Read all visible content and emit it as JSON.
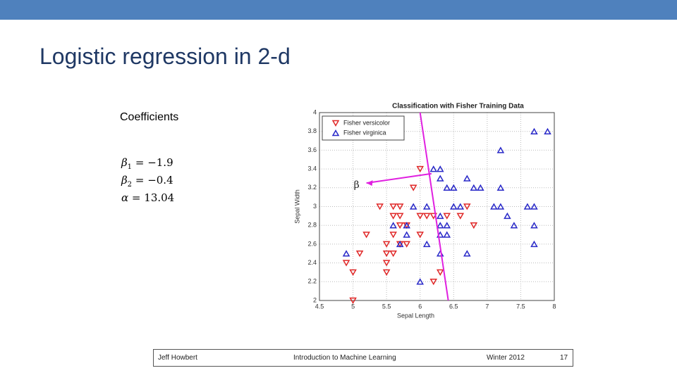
{
  "title": "Logistic regression in 2-d",
  "coefficients": {
    "label": "Coefficients",
    "items": [
      {
        "symbol": "β",
        "sub": "1",
        "relation": "=",
        "value": "−1.9"
      },
      {
        "symbol": "β",
        "sub": "2",
        "relation": "=",
        "value": "−0.4"
      },
      {
        "symbol": "α",
        "sub": "",
        "relation": "=",
        "value": "13.04"
      }
    ]
  },
  "chart_data": {
    "type": "scatter",
    "title": "Classification with Fisher Training Data",
    "xlabel": "Sepal Length",
    "ylabel": "Sepal Width",
    "xlim": [
      4.5,
      8
    ],
    "xticks": [
      4.5,
      5,
      5.5,
      6,
      6.5,
      7,
      7.5,
      8
    ],
    "ylim": [
      2,
      4
    ],
    "yticks": [
      2,
      2.2,
      2.4,
      2.6,
      2.8,
      3,
      3.2,
      3.4,
      3.6,
      3.8,
      4
    ],
    "grid": true,
    "legend": "upper left",
    "series": [
      {
        "name": "Fisher versicolor",
        "color": "#e02828",
        "marker": "triangle-down",
        "x": [
          6.0,
          5.9,
          5.4,
          5.6,
          5.7,
          6.0,
          6.1,
          6.2,
          6.4,
          6.6,
          5.6,
          5.7,
          5.8,
          5.7,
          5.6,
          6.0,
          5.2,
          5.5,
          5.7,
          5.8,
          5.5,
          5.6,
          5.1,
          4.9,
          5.5,
          5.0,
          5.5,
          6.3,
          6.2,
          5.0,
          6.8,
          6.7
        ],
        "values": [
          3.4,
          3.2,
          3.0,
          3.0,
          3.0,
          2.9,
          2.9,
          2.9,
          2.9,
          2.9,
          2.9,
          2.9,
          2.8,
          2.8,
          2.7,
          2.7,
          2.7,
          2.6,
          2.6,
          2.6,
          2.5,
          2.5,
          2.5,
          2.4,
          2.4,
          2.3,
          2.3,
          2.3,
          2.2,
          2.0,
          2.8,
          3.0
        ]
      },
      {
        "name": "Fisher virginica",
        "color": "#2828c8",
        "marker": "triangle-up",
        "x": [
          7.7,
          7.9,
          7.2,
          6.2,
          6.3,
          6.7,
          6.3,
          6.4,
          6.5,
          6.8,
          6.9,
          7.2,
          5.9,
          6.1,
          6.5,
          6.6,
          7.1,
          7.2,
          7.6,
          7.7,
          6.3,
          6.4,
          6.3,
          5.6,
          5.8,
          7.3,
          7.4,
          7.7,
          6.3,
          6.4,
          5.8,
          6.1,
          5.7,
          6.7,
          6.3,
          4.9,
          7.7,
          6.0
        ],
        "values": [
          3.8,
          3.8,
          3.6,
          3.4,
          3.4,
          3.3,
          3.3,
          3.2,
          3.2,
          3.2,
          3.2,
          3.2,
          3.0,
          3.0,
          3.0,
          3.0,
          3.0,
          3.0,
          3.0,
          3.0,
          2.9,
          2.8,
          2.8,
          2.8,
          2.8,
          2.9,
          2.8,
          2.8,
          2.7,
          2.7,
          2.7,
          2.6,
          2.6,
          2.5,
          2.5,
          2.5,
          2.6,
          2.2
        ]
      }
    ],
    "boundary": {
      "color": "#e020e0",
      "x": [
        6.0,
        6.42
      ],
      "y": [
        4,
        2
      ]
    },
    "arrow": {
      "label": "β",
      "color": "#e020e0",
      "x": [
        6.17,
        5.2
      ],
      "y": [
        3.35,
        3.25
      ]
    }
  },
  "footer": {
    "author": "Jeff Howbert",
    "course": "Introduction to Machine Learning",
    "term": "Winter 2012",
    "page": "17"
  }
}
